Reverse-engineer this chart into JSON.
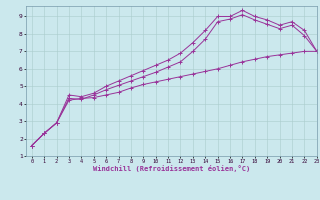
{
  "bg_color": "#cbe8ed",
  "grid_color": "#aacccc",
  "line_color": "#993399",
  "line1_x": [
    0,
    1,
    2,
    3,
    4,
    5,
    6,
    7,
    8,
    9,
    10,
    11,
    12,
    13,
    14,
    15,
    16,
    17,
    18,
    19,
    20,
    21,
    22,
    23
  ],
  "line1_y": [
    1.6,
    2.3,
    2.9,
    4.2,
    4.3,
    4.35,
    4.5,
    4.65,
    4.9,
    5.1,
    5.25,
    5.4,
    5.55,
    5.7,
    5.85,
    6.0,
    6.2,
    6.4,
    6.55,
    6.7,
    6.8,
    6.9,
    7.0,
    7.0
  ],
  "line2_x": [
    0,
    1,
    2,
    3,
    4,
    5,
    6,
    7,
    8,
    9,
    10,
    11,
    12,
    13,
    14,
    15,
    16,
    17,
    18,
    19,
    20,
    21,
    22,
    23
  ],
  "line2_y": [
    1.6,
    2.3,
    2.9,
    4.5,
    4.4,
    4.6,
    5.0,
    5.3,
    5.6,
    5.9,
    6.2,
    6.5,
    6.9,
    7.5,
    8.2,
    9.0,
    9.0,
    9.35,
    9.0,
    8.8,
    8.5,
    8.7,
    8.2,
    7.0
  ],
  "line3_x": [
    0,
    1,
    2,
    3,
    4,
    5,
    6,
    7,
    8,
    9,
    10,
    11,
    12,
    13,
    14,
    15,
    16,
    17,
    18,
    19,
    20,
    21,
    22,
    23
  ],
  "line3_y": [
    1.6,
    2.3,
    2.9,
    4.3,
    4.25,
    4.5,
    4.8,
    5.05,
    5.3,
    5.55,
    5.8,
    6.1,
    6.4,
    7.0,
    7.7,
    8.7,
    8.85,
    9.1,
    8.8,
    8.55,
    8.3,
    8.5,
    7.9,
    7.0
  ],
  "xlabel": "Windchill (Refroidissement éolien,°C)",
  "ylim": [
    1,
    9.6
  ],
  "xlim": [
    -0.5,
    23
  ],
  "yticks": [
    1,
    2,
    3,
    4,
    5,
    6,
    7,
    8,
    9
  ],
  "xticks": [
    0,
    1,
    2,
    3,
    4,
    5,
    6,
    7,
    8,
    9,
    10,
    11,
    12,
    13,
    14,
    15,
    16,
    17,
    18,
    19,
    20,
    21,
    22,
    23
  ]
}
